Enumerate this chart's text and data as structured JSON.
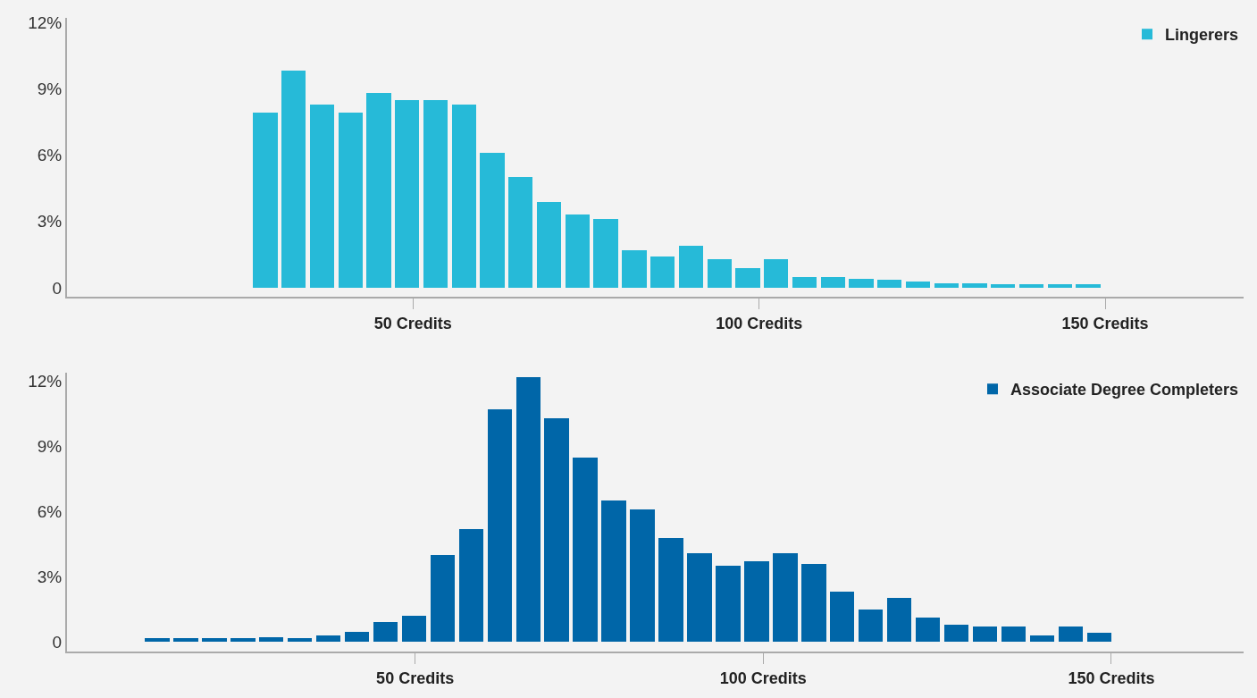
{
  "chart_data": [
    {
      "type": "histogram",
      "bins": [
        26.6,
        30.7,
        34.8,
        38.9,
        43.0,
        47.1,
        51.2,
        55.3,
        59.4,
        63.5,
        67.6,
        71.7,
        75.8,
        79.9,
        84.0,
        88.1,
        92.2,
        96.3,
        100.4,
        104.5,
        108.6,
        112.7,
        116.8,
        120.9,
        125.0,
        129.1,
        133.2,
        137.3,
        141.4,
        145.5,
        149.6
      ],
      "series": [
        {
          "name": "Lingerers",
          "color": "#26bad8",
          "values": [
            7.9,
            9.8,
            8.3,
            7.9,
            8.8,
            8.5,
            8.5,
            8.3,
            6.1,
            5.0,
            3.9,
            3.3,
            3.1,
            1.7,
            1.4,
            1.9,
            1.3,
            0.9,
            1.3,
            0.5,
            0.5,
            0.4,
            0.35,
            0.3,
            0.2,
            0.2,
            0.15,
            0.15,
            0.15,
            0.15
          ]
        }
      ],
      "xlim": [
        0,
        170
      ],
      "xticks": [
        {
          "value": 50,
          "label": "50 Credits"
        },
        {
          "value": 100,
          "label": "100 Credits"
        },
        {
          "value": 150,
          "label": "150 Credits"
        }
      ],
      "ylim": [
        -0.4,
        12.2
      ],
      "yticks": [
        0,
        {
          "value": 3,
          "label": "3%"
        },
        {
          "value": 6,
          "label": "6%"
        },
        {
          "value": 9,
          "label": "9%"
        },
        {
          "value": 12,
          "label": "12%"
        }
      ],
      "grid": false,
      "legend": "top right"
    },
    {
      "type": "histogram",
      "bins": [
        10.9,
        15.0,
        19.1,
        23.2,
        27.3,
        31.4,
        35.5,
        39.6,
        43.7,
        47.8,
        51.9,
        56.0,
        60.1,
        64.2,
        68.3,
        72.4,
        76.5,
        80.6,
        84.7,
        88.8,
        92.9,
        97.0,
        101.1,
        105.2,
        109.3,
        113.4,
        117.5,
        121.6,
        125.7,
        129.8,
        133.9,
        138.0,
        142.1,
        146.2,
        150.3
      ],
      "series": [
        {
          "name": "Associate Degree Completers",
          "color": "#0066a8",
          "values": [
            0.15,
            0.15,
            0.15,
            0.15,
            0.2,
            0.15,
            0.3,
            0.45,
            0.9,
            1.2,
            4.0,
            5.2,
            10.7,
            12.2,
            10.3,
            8.5,
            6.5,
            6.1,
            4.8,
            4.1,
            3.5,
            3.7,
            4.1,
            3.6,
            2.3,
            1.5,
            2.0,
            1.1,
            0.8,
            0.7,
            0.7,
            0.3,
            0.7,
            0.4
          ]
        }
      ],
      "xlim": [
        0,
        169
      ],
      "xticks": [
        {
          "value": 50,
          "label": "50 Credits"
        },
        {
          "value": 100,
          "label": "100 Credits"
        },
        {
          "value": 150,
          "label": "150 Credits"
        }
      ],
      "ylim": [
        -0.45,
        12.4
      ],
      "yticks": [
        0,
        {
          "value": 3,
          "label": "3%"
        },
        {
          "value": 6,
          "label": "6%"
        },
        {
          "value": 9,
          "label": "9%"
        },
        {
          "value": 12,
          "label": "12%"
        }
      ],
      "grid": false,
      "legend": "top right"
    }
  ]
}
